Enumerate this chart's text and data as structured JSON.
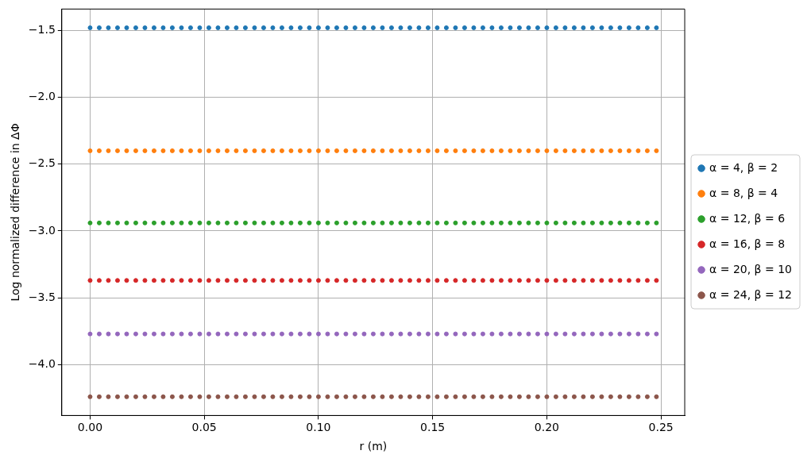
{
  "chart_data": {
    "type": "scatter",
    "xlabel": "r (m)",
    "ylabel": "Log normalized difference in ΔΦ",
    "x": [
      0,
      0.004,
      0.008,
      0.012,
      0.016,
      0.02,
      0.024,
      0.028,
      0.032,
      0.036,
      0.04,
      0.044,
      0.048,
      0.052,
      0.056,
      0.06,
      0.064,
      0.068,
      0.072,
      0.076,
      0.08,
      0.084,
      0.088,
      0.092,
      0.096,
      0.1,
      0.104,
      0.108,
      0.112,
      0.116,
      0.12,
      0.124,
      0.128,
      0.132,
      0.136,
      0.14,
      0.144,
      0.148,
      0.152,
      0.156,
      0.16,
      0.164,
      0.168,
      0.172,
      0.176,
      0.18,
      0.184,
      0.188,
      0.192,
      0.196,
      0.2,
      0.204,
      0.208,
      0.212,
      0.216,
      0.22,
      0.224,
      0.228,
      0.232,
      0.236,
      0.24,
      0.244,
      0.248
    ],
    "series": [
      {
        "name": "α = 4, β = 2",
        "color": "#1f77b4",
        "values": [
          -1.48,
          -1.48,
          -1.48,
          -1.48,
          -1.48,
          -1.48,
          -1.48,
          -1.48,
          -1.48,
          -1.48,
          -1.48,
          -1.48,
          -1.48,
          -1.48,
          -1.48,
          -1.48,
          -1.48,
          -1.48,
          -1.48,
          -1.48,
          -1.48,
          -1.48,
          -1.48,
          -1.48,
          -1.48,
          -1.48,
          -1.48,
          -1.48,
          -1.48,
          -1.48,
          -1.48,
          -1.48,
          -1.48,
          -1.48,
          -1.48,
          -1.48,
          -1.48,
          -1.48,
          -1.48,
          -1.48,
          -1.48,
          -1.48,
          -1.48,
          -1.48,
          -1.48,
          -1.48,
          -1.48,
          -1.48,
          -1.48,
          -1.48,
          -1.48,
          -1.48,
          -1.48,
          -1.48,
          -1.48,
          -1.48,
          -1.48,
          -1.48,
          -1.48,
          -1.48,
          -1.48,
          -1.48,
          -1.48
        ]
      },
      {
        "name": "α = 8, β = 4",
        "color": "#ff7f0e",
        "values": [
          -2.4,
          -2.4,
          -2.4,
          -2.4,
          -2.4,
          -2.4,
          -2.4,
          -2.4,
          -2.4,
          -2.4,
          -2.4,
          -2.4,
          -2.4,
          -2.4,
          -2.4,
          -2.4,
          -2.4,
          -2.4,
          -2.4,
          -2.4,
          -2.4,
          -2.4,
          -2.4,
          -2.4,
          -2.4,
          -2.4,
          -2.4,
          -2.4,
          -2.4,
          -2.4,
          -2.4,
          -2.4,
          -2.4,
          -2.4,
          -2.4,
          -2.4,
          -2.4,
          -2.4,
          -2.4,
          -2.4,
          -2.4,
          -2.4,
          -2.4,
          -2.4,
          -2.4,
          -2.4,
          -2.4,
          -2.4,
          -2.4,
          -2.4,
          -2.4,
          -2.4,
          -2.4,
          -2.4,
          -2.4,
          -2.4,
          -2.4,
          -2.4,
          -2.4,
          -2.4,
          -2.4,
          -2.4,
          -2.4
        ]
      },
      {
        "name": "α = 12, β = 6",
        "color": "#2ca02c",
        "values": [
          -2.94,
          -2.94,
          -2.94,
          -2.94,
          -2.94,
          -2.94,
          -2.94,
          -2.94,
          -2.94,
          -2.94,
          -2.94,
          -2.94,
          -2.94,
          -2.94,
          -2.94,
          -2.94,
          -2.94,
          -2.94,
          -2.94,
          -2.94,
          -2.94,
          -2.94,
          -2.94,
          -2.94,
          -2.94,
          -2.94,
          -2.94,
          -2.94,
          -2.94,
          -2.94,
          -2.94,
          -2.94,
          -2.94,
          -2.94,
          -2.94,
          -2.94,
          -2.94,
          -2.94,
          -2.94,
          -2.94,
          -2.94,
          -2.94,
          -2.94,
          -2.94,
          -2.94,
          -2.94,
          -2.94,
          -2.94,
          -2.94,
          -2.94,
          -2.94,
          -2.94,
          -2.94,
          -2.94,
          -2.94,
          -2.94,
          -2.94,
          -2.94,
          -2.94,
          -2.94,
          -2.94,
          -2.94,
          -2.94
        ]
      },
      {
        "name": "α = 16, β = 8",
        "color": "#d62728",
        "values": [
          -3.37,
          -3.37,
          -3.37,
          -3.37,
          -3.37,
          -3.37,
          -3.37,
          -3.37,
          -3.37,
          -3.37,
          -3.37,
          -3.37,
          -3.37,
          -3.37,
          -3.37,
          -3.37,
          -3.37,
          -3.37,
          -3.37,
          -3.37,
          -3.37,
          -3.37,
          -3.37,
          -3.37,
          -3.37,
          -3.37,
          -3.37,
          -3.37,
          -3.37,
          -3.37,
          -3.37,
          -3.37,
          -3.37,
          -3.37,
          -3.37,
          -3.37,
          -3.37,
          -3.37,
          -3.37,
          -3.37,
          -3.37,
          -3.37,
          -3.37,
          -3.37,
          -3.37,
          -3.37,
          -3.37,
          -3.37,
          -3.37,
          -3.37,
          -3.37,
          -3.37,
          -3.37,
          -3.37,
          -3.37,
          -3.37,
          -3.37,
          -3.37,
          -3.37,
          -3.37,
          -3.37,
          -3.37,
          -3.37
        ]
      },
      {
        "name": "α = 20, β = 10",
        "color": "#9467bd",
        "values": [
          -3.77,
          -3.77,
          -3.77,
          -3.77,
          -3.77,
          -3.77,
          -3.77,
          -3.77,
          -3.77,
          -3.77,
          -3.77,
          -3.77,
          -3.77,
          -3.77,
          -3.77,
          -3.77,
          -3.77,
          -3.77,
          -3.77,
          -3.77,
          -3.77,
          -3.77,
          -3.77,
          -3.77,
          -3.77,
          -3.77,
          -3.77,
          -3.77,
          -3.77,
          -3.77,
          -3.77,
          -3.77,
          -3.77,
          -3.77,
          -3.77,
          -3.77,
          -3.77,
          -3.77,
          -3.77,
          -3.77,
          -3.77,
          -3.77,
          -3.77,
          -3.77,
          -3.77,
          -3.77,
          -3.77,
          -3.77,
          -3.77,
          -3.77,
          -3.77,
          -3.77,
          -3.77,
          -3.77,
          -3.77,
          -3.77,
          -3.77,
          -3.77,
          -3.77,
          -3.77,
          -3.77,
          -3.77,
          -3.77
        ]
      },
      {
        "name": "α = 24, β = 12",
        "color": "#8c564b",
        "values": [
          -4.24,
          -4.24,
          -4.24,
          -4.24,
          -4.24,
          -4.24,
          -4.24,
          -4.24,
          -4.24,
          -4.24,
          -4.24,
          -4.24,
          -4.24,
          -4.24,
          -4.24,
          -4.24,
          -4.24,
          -4.24,
          -4.24,
          -4.24,
          -4.24,
          -4.24,
          -4.24,
          -4.24,
          -4.24,
          -4.24,
          -4.24,
          -4.24,
          -4.24,
          -4.24,
          -4.24,
          -4.24,
          -4.24,
          -4.24,
          -4.24,
          -4.24,
          -4.24,
          -4.24,
          -4.24,
          -4.24,
          -4.24,
          -4.24,
          -4.24,
          -4.24,
          -4.24,
          -4.24,
          -4.24,
          -4.24,
          -4.24,
          -4.24,
          -4.24,
          -4.24,
          -4.24,
          -4.24,
          -4.24,
          -4.24,
          -4.24,
          -4.24,
          -4.24,
          -4.24,
          -4.24,
          -4.24,
          -4.24
        ]
      }
    ],
    "xlim": [
      -0.0124,
      0.2604
    ],
    "xticks": [
      {
        "value": 0,
        "label": "0.00"
      },
      {
        "value": 0.05,
        "label": "0.05"
      },
      {
        "value": 0.1,
        "label": "0.10"
      },
      {
        "value": 0.15,
        "label": "0.15"
      },
      {
        "value": 0.2,
        "label": "0.20"
      },
      {
        "value": 0.25,
        "label": "0.25"
      }
    ],
    "ylim": [
      -4.38,
      -1.34
    ],
    "yticks": [
      {
        "value": -4,
        "label": "−4.0"
      },
      {
        "value": -3.5,
        "label": "−3.5"
      },
      {
        "value": -3,
        "label": "−3.0"
      },
      {
        "value": -2.5,
        "label": "−2.5"
      },
      {
        "value": -2,
        "label": "−2.0"
      },
      {
        "value": -1.5,
        "label": "−1.5"
      }
    ],
    "grid": true,
    "legend": "right",
    "marker": "circle"
  }
}
